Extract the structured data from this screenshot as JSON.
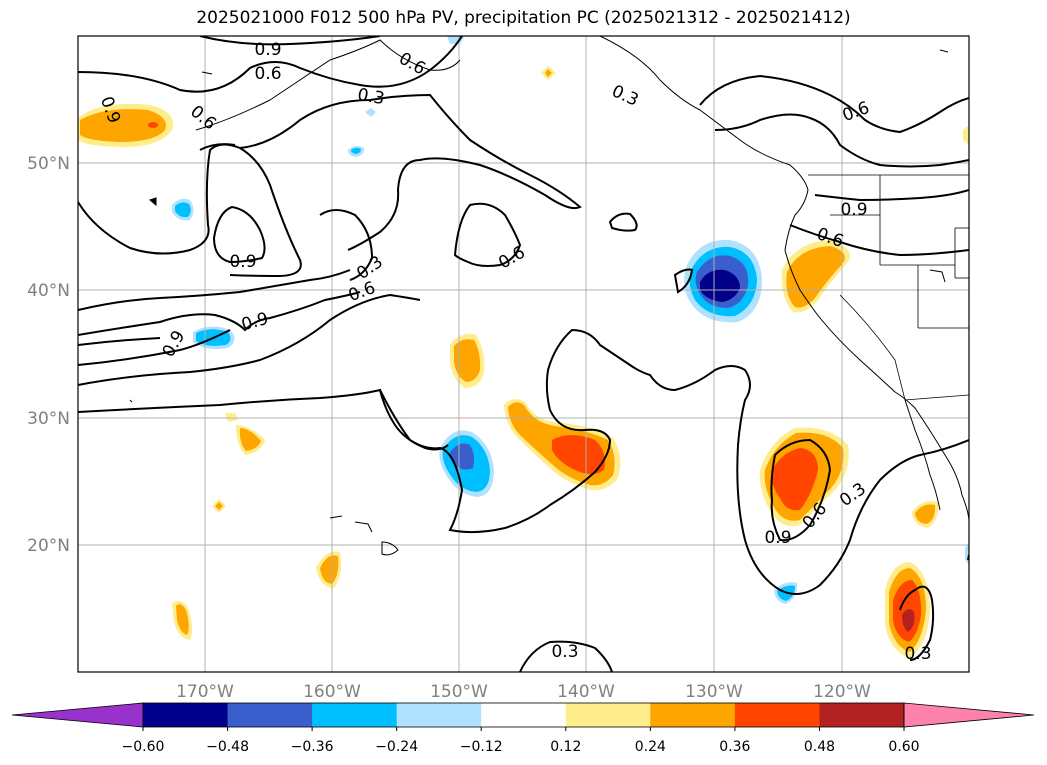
{
  "title": "2025021000 F012 500 hPa PV, precipitation PC (2025021312 - 2025021412)",
  "map": {
    "lat_labels": [
      "50°N",
      "40°N",
      "30°N",
      "20°N"
    ],
    "lon_labels": [
      "170°W",
      "160°W",
      "150°W",
      "140°W",
      "130°W",
      "120°W"
    ],
    "contour_labels": [
      "0.9",
      "0.6",
      "0.3",
      "0.6",
      "0.9",
      "0.3",
      "0.9",
      "0.6",
      "0.9",
      "0.6",
      "0.9",
      "0.6",
      "0.3",
      "0.6",
      "0.6",
      "0.9",
      "0.3",
      "0.6",
      "0.9",
      "0.3",
      "0.3"
    ]
  },
  "colorbar": {
    "ticks": [
      "−0.60",
      "−0.48",
      "−0.36",
      "−0.24",
      "−0.12",
      "0.12",
      "0.24",
      "0.36",
      "0.48",
      "0.60"
    ],
    "colors": [
      "#9932cc",
      "#00008b",
      "#3a5fcd",
      "#00bfff",
      "#b0e2ff",
      "#ffffff",
      "#ffec8b",
      "#ffa500",
      "#ff4500",
      "#b22222",
      "#ff82ab"
    ]
  }
}
